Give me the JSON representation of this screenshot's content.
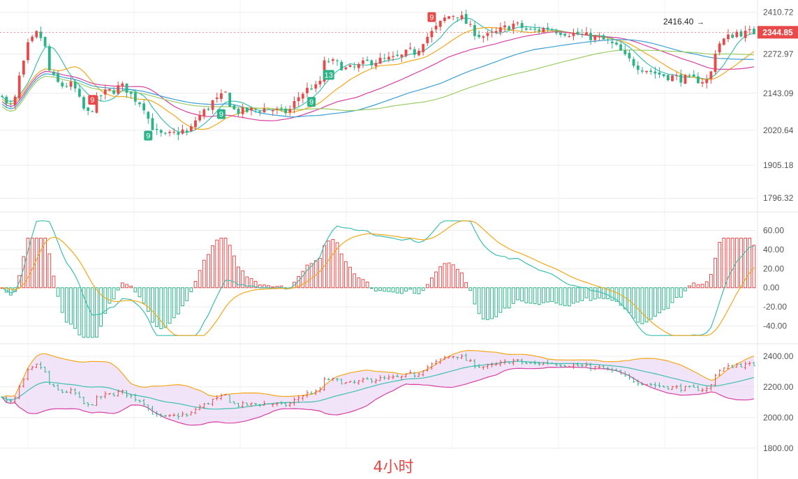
{
  "chart_data": [
    {
      "panel": "price",
      "type": "candlestick",
      "ylim": [
        1760,
        2440
      ],
      "y_ticks": [
        "2410.72",
        "2272.97",
        "2143.09",
        "2020.64",
        "1905.18",
        "1796.32"
      ],
      "current_price": "2344.85",
      "current_price_color": "#e84a4a",
      "high_annotation": "2416.40",
      "td_markers": [
        {
          "label": "9",
          "color": "#e84a4a",
          "kind": "top"
        },
        {
          "label": "9",
          "color": "#2db388",
          "kind": "bottom"
        },
        {
          "label": "9",
          "color": "#2db388",
          "kind": "bottom"
        },
        {
          "label": "9",
          "color": "#e84a4a",
          "kind": "top"
        },
        {
          "label": "9",
          "color": "#2db388",
          "kind": "bottom"
        },
        {
          "label": "13",
          "color": "#2db388",
          "kind": "bottom"
        }
      ],
      "ma_colors": [
        "#3bbfb0",
        "#f2a818",
        "#d63fa0",
        "#3b9fd6",
        "#9ccc65"
      ],
      "up_color": "#e84a4a",
      "down_color": "#2db388"
    },
    {
      "panel": "macd",
      "type": "bar+line",
      "ylim": [
        -55,
        75
      ],
      "y_ticks": [
        "60.00",
        "40.00",
        "20.00",
        "0.00",
        "-20.00",
        "-40.00"
      ],
      "series": [
        {
          "line": "DIF",
          "color": "#3bbfb0"
        },
        {
          "line": "DEA",
          "color": "#f2a818"
        }
      ]
    },
    {
      "panel": "bollinger",
      "type": "band",
      "ylim": [
        1790,
        2450
      ],
      "y_ticks": [
        "2400.00",
        "2200.00",
        "2000.00",
        "1800.00"
      ],
      "upper_color": "#f2a818",
      "mid_color": "#3bbfb0",
      "lower_color": "#d63fa0",
      "fill_color": "#ecd8f5"
    }
  ],
  "timeframe_label": "4小时"
}
